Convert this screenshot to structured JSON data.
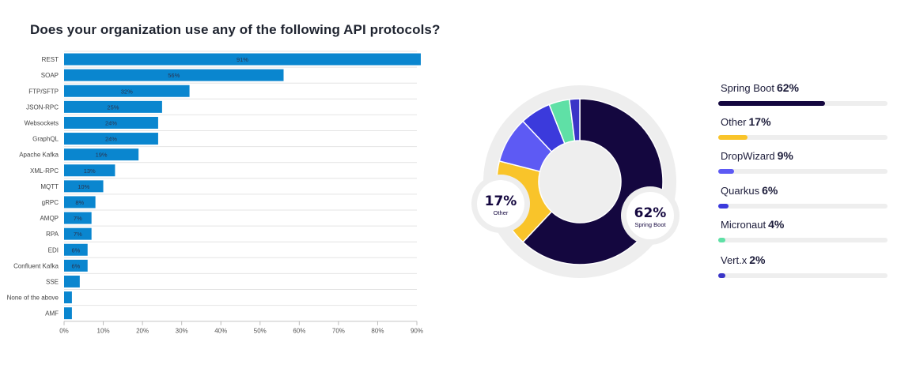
{
  "title": "Does your organization use any of the following API protocols?",
  "chart_data": [
    {
      "type": "bar",
      "orientation": "horizontal",
      "title": "Does your organization use any of the following API protocols?",
      "categories": [
        "REST",
        "SOAP",
        "FTP/SFTP",
        "JSON-RPC",
        "Websockets",
        "GraphQL",
        "Apache Kafka",
        "XML-RPC",
        "MQTT",
        "gRPC",
        "AMQP",
        "RPA",
        "EDI",
        "Confluent Kafka",
        "SSE",
        "None of the above",
        "AMF"
      ],
      "values": [
        91,
        56,
        32,
        25,
        24,
        24,
        19,
        13,
        10,
        8,
        7,
        7,
        6,
        6,
        4,
        2,
        2
      ],
      "value_labels": [
        "91%",
        "56%",
        "32%",
        "25%",
        "24%",
        "24%",
        "19%",
        "13%",
        "10%",
        "8%",
        "7%",
        "7%",
        "6%",
        "6%",
        "",
        "",
        ""
      ],
      "xlim": [
        0,
        90
      ],
      "x_ticks": [
        "0%",
        "10%",
        "20%",
        "30%",
        "40%",
        "50%",
        "60%",
        "70%",
        "80%",
        "90%"
      ],
      "grid": true,
      "bar_color": "#0a86cf"
    },
    {
      "type": "pie",
      "variant": "donut",
      "slices": [
        {
          "name": "Spring Boot",
          "value": 62,
          "label": "62%",
          "color": "#14073f"
        },
        {
          "name": "Other",
          "value": 17,
          "label": "17%",
          "color": "#f9c42a"
        },
        {
          "name": "DropWizard",
          "value": 9,
          "label": "9%",
          "color": "#5d5af4"
        },
        {
          "name": "Quarkus",
          "value": 6,
          "label": "6%",
          "color": "#3b3adc"
        },
        {
          "name": "Micronaut",
          "value": 4,
          "label": "4%",
          "color": "#5fe0a6"
        },
        {
          "name": "Vert.x",
          "value": 2,
          "label": "2%",
          "color": "#3a35c7"
        }
      ],
      "callouts": [
        {
          "pct": "62%",
          "name": "Spring Boot"
        },
        {
          "pct": "17%",
          "name": "Other"
        }
      ],
      "legend_placement": "right",
      "track_color": "#eeeeee",
      "ring_background": "#eeeeee"
    }
  ]
}
